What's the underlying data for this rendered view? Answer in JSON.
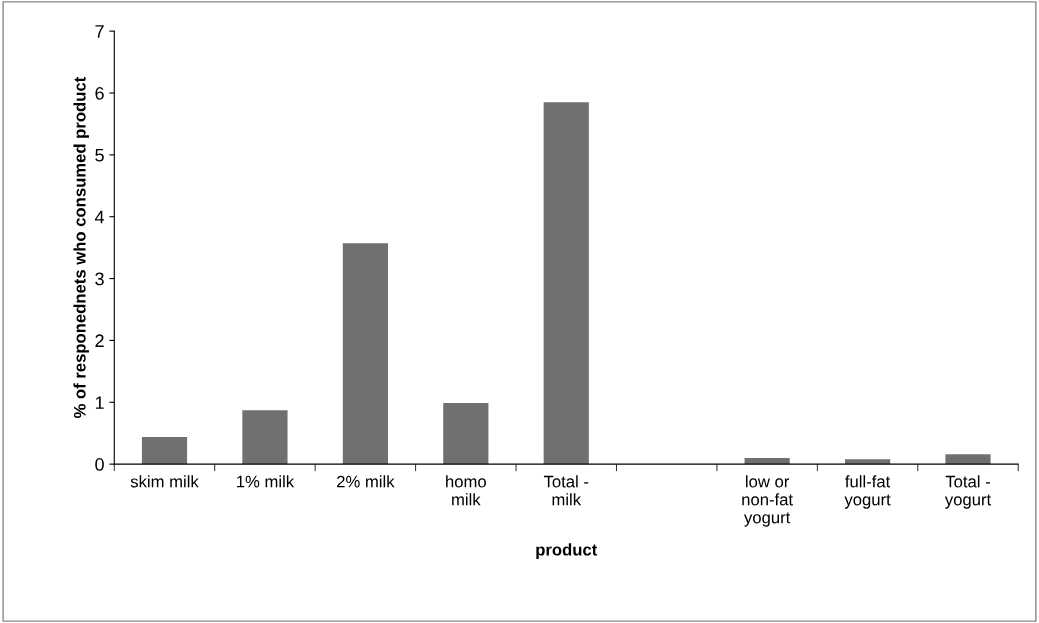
{
  "chart_data": {
    "type": "bar",
    "xlabel": "product",
    "ylabel": "% of responednets who consumed product",
    "categories": [
      "skim milk",
      "1% milk",
      "2% milk",
      "homo\nmilk",
      "Total -\nmilk",
      null,
      "low or\nnon-fat\nyogurt",
      "full-fat\nyogurt",
      "Total -\nyogurt"
    ],
    "values": [
      0.44,
      0.87,
      3.57,
      0.99,
      5.85,
      null,
      0.1,
      0.08,
      0.16
    ],
    "color": "#707070",
    "ylim": [
      0,
      7
    ],
    "yticks": [
      0,
      1,
      2,
      3,
      4,
      5,
      6,
      7
    ],
    "grid": false
  }
}
